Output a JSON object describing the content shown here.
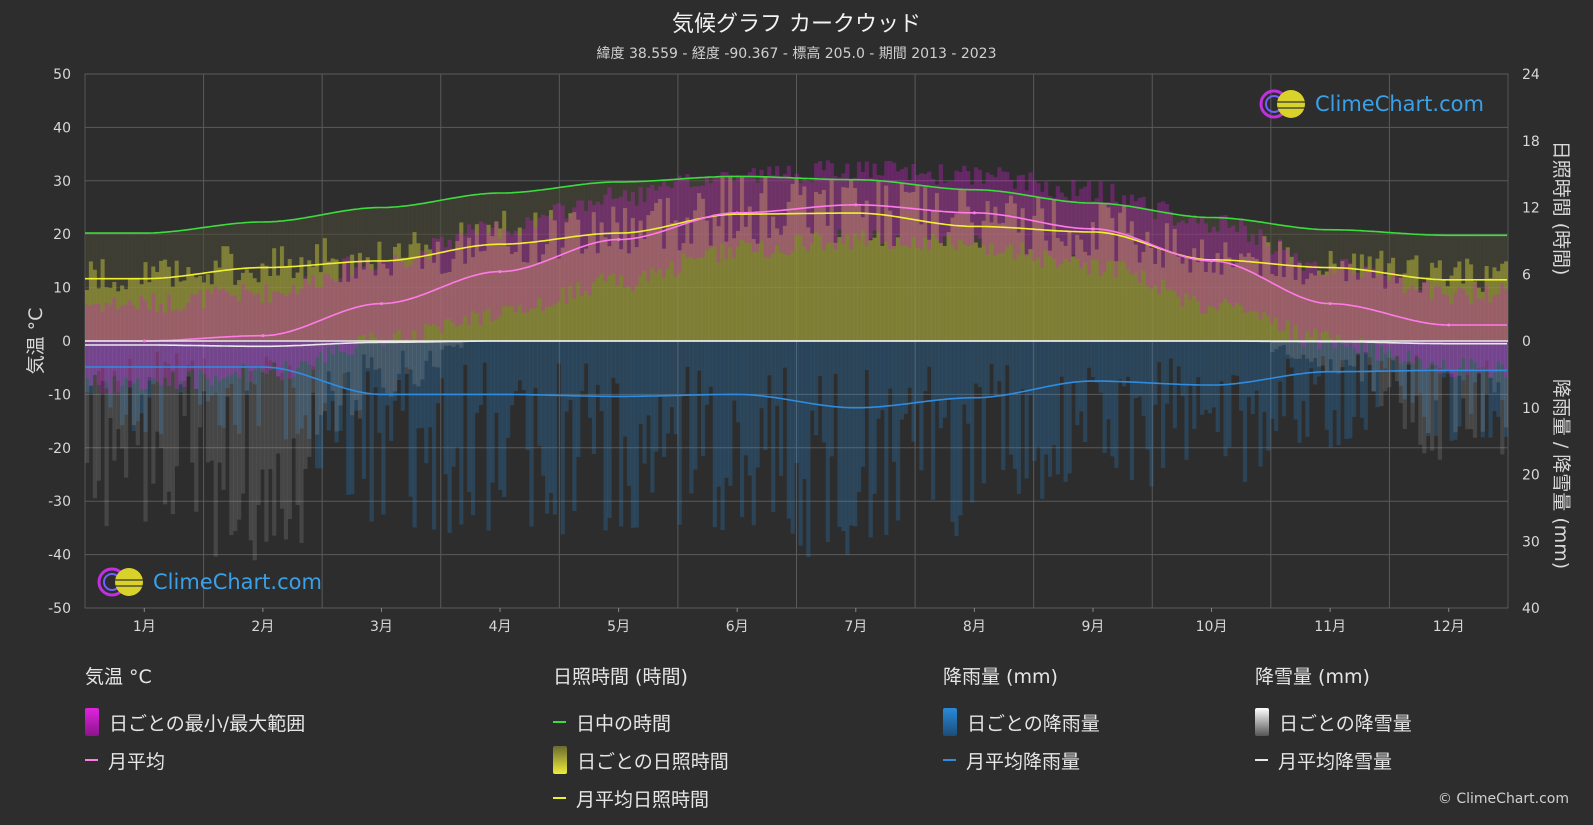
{
  "title": "気候グラフ カークウッド",
  "subtitle": "緯度 38.559 - 経度 -90.367 - 標高 205.0 - 期間 2013 - 2023",
  "logo_text": "ClimeChart.com",
  "copyright": "© ClimeChart.com",
  "axes": {
    "left_label": "気温 °C",
    "right_top_label": "日照時間 (時間)",
    "right_bottom_label": "降雨量 / 降雪量 (mm)",
    "left_ticks": [
      "50",
      "40",
      "30",
      "20",
      "10",
      "0",
      "-10",
      "-20",
      "-30",
      "-40",
      "-50"
    ],
    "right_top_ticks": [
      "24",
      "18",
      "12",
      "6",
      "0"
    ],
    "right_bottom_ticks": [
      "10",
      "20",
      "30",
      "40"
    ],
    "months": [
      "1月",
      "2月",
      "3月",
      "4月",
      "5月",
      "6月",
      "7月",
      "8月",
      "9月",
      "10月",
      "11月",
      "12月"
    ]
  },
  "legend": {
    "temp": {
      "head": "気温 °C",
      "range": "日ごとの最小/最大範囲",
      "avg": "月平均"
    },
    "sun": {
      "head": "日照時間 (時間)",
      "daylight": "日中の時間",
      "daily": "日ごとの日照時間",
      "avg": "月平均日照時間"
    },
    "rain": {
      "head": "降雨量 (mm)",
      "daily": "日ごとの降雨量",
      "avg": "月平均降雨量"
    },
    "snow": {
      "head": "降雪量 (mm)",
      "daily": "日ごとの降雪量",
      "avg": "月平均降雪量"
    }
  },
  "colors": {
    "background": "#2d2d2d",
    "temp_range": "#d21fd2",
    "temp_avg": "#ff7ae8",
    "daylight": "#3ddc3d",
    "sunshine_band": "#b4b43a",
    "sunshine_avg": "#f0f032",
    "rain": "#2a8ad8",
    "rain_avg": "#2f8ce0",
    "snow": "#bfbfbf",
    "snow_avg": "#e8e8e8",
    "logo": "#3aa0e8"
  },
  "chart_data": {
    "type": "line",
    "x": [
      "1月",
      "2月",
      "3月",
      "4月",
      "5月",
      "6月",
      "7月",
      "8月",
      "9月",
      "10月",
      "11月",
      "12月"
    ],
    "temp_ylim": [
      -50,
      50
    ],
    "sun_ylim": [
      0,
      24
    ],
    "precip_ylim": [
      0,
      40
    ],
    "series": [
      {
        "name": "月平均",
        "unit": "°C",
        "values": [
          0,
          1,
          7,
          13,
          19,
          24,
          25.5,
          24,
          21,
          15,
          7,
          3
        ]
      },
      {
        "name": "日ごとの最小/最大範囲 (min)",
        "unit": "°C",
        "values": [
          -6,
          -4,
          2,
          7,
          13,
          19,
          21,
          20,
          16,
          9,
          2,
          -3
        ]
      },
      {
        "name": "日ごとの最小/最大範囲 (max)",
        "unit": "°C",
        "values": [
          5,
          7,
          13,
          19,
          25,
          29,
          30,
          29,
          26,
          20,
          12,
          7
        ]
      },
      {
        "name": "日中の時間",
        "unit": "時間",
        "values": [
          9.7,
          10.7,
          12.0,
          13.3,
          14.3,
          14.8,
          14.5,
          13.6,
          12.4,
          11.1,
          10.0,
          9.5
        ]
      },
      {
        "name": "月平均日照時間",
        "unit": "時間",
        "values": [
          5.6,
          6.6,
          7.2,
          8.7,
          9.7,
          11.4,
          11.5,
          10.3,
          9.8,
          7.3,
          6.6,
          5.5
        ]
      },
      {
        "name": "月平均降雨量",
        "unit": "mm",
        "values": [
          3.9,
          3.9,
          8.0,
          8.0,
          8.3,
          8.0,
          10.0,
          8.5,
          6.0,
          6.6,
          4.6,
          4.4
        ]
      },
      {
        "name": "月平均降雪量",
        "unit": "mm",
        "values": [
          0.6,
          0.8,
          0.2,
          0,
          0,
          0,
          0,
          0,
          0,
          0,
          0.1,
          0.4
        ]
      }
    ]
  }
}
